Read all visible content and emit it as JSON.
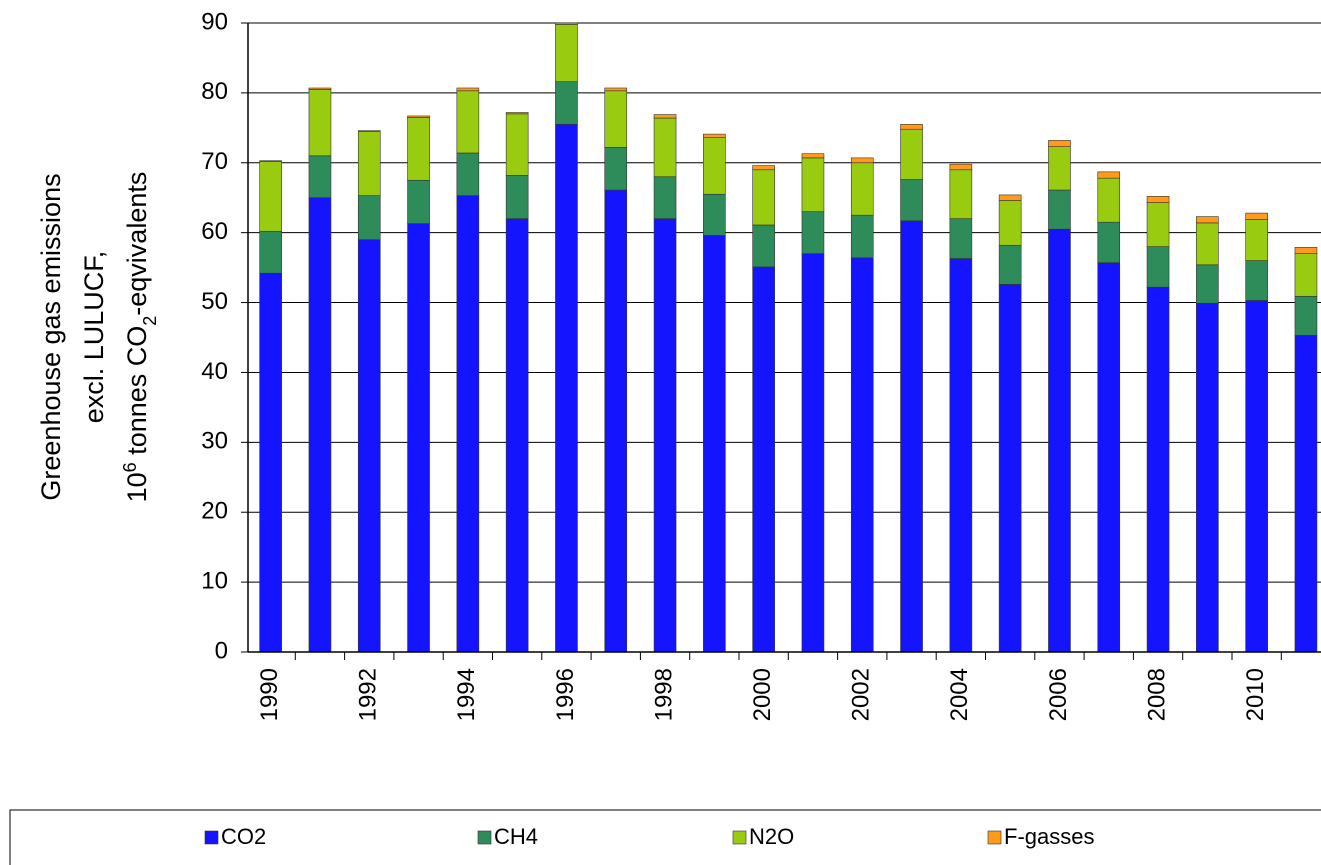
{
  "chart_data": {
    "type": "stacked_bar",
    "y_label": [
      "Greenhouse  gas emissions",
      "excl. LULUCF,",
      [
        "10",
        "6",
        " tonnes  CO",
        "2",
        "-eqvivalents"
      ]
    ],
    "categories": [
      "1990",
      null,
      "1992",
      null,
      "1994",
      null,
      "1996",
      null,
      "1998",
      null,
      "2000",
      null,
      "2002",
      null,
      "2004",
      null,
      "2006",
      null,
      "2008",
      null,
      "2010",
      null
    ],
    "series": [
      {
        "name": "CO2",
        "color": "#1414ff",
        "values": [
          54.2,
          65,
          59,
          61.3,
          65.3,
          62,
          75.5,
          66.1,
          62,
          59.6,
          55.1,
          57,
          56.4,
          61.7,
          56.3,
          52.6,
          60.5,
          55.7,
          52.2,
          49.9,
          50.3,
          45.3
        ]
      },
      {
        "name": "CH4",
        "color": "#2e8b5a",
        "values": [
          6.0,
          6.0,
          6.3,
          6.2,
          6.1,
          6.2,
          6.1,
          6.1,
          6.0,
          5.9,
          6.0,
          6.0,
          6.1,
          5.9,
          5.7,
          5.6,
          5.6,
          5.8,
          5.8,
          5.5,
          5.7,
          5.6
        ]
      },
      {
        "name": "N2O",
        "color": "#99cc11",
        "values": [
          10.0,
          9.5,
          9.2,
          9.0,
          8.9,
          8.8,
          8.2,
          8.1,
          8.4,
          8.1,
          7.9,
          7.7,
          7.5,
          7.2,
          7.0,
          6.4,
          6.2,
          6.3,
          6.3,
          6.0,
          5.9,
          6.1
        ]
      },
      {
        "name": "F-gasses",
        "color": "#ff9a1a",
        "values": [
          0.1,
          0.2,
          0.1,
          0.2,
          0.4,
          0.2,
          0.2,
          0.4,
          0.5,
          0.5,
          0.6,
          0.6,
          0.7,
          0.7,
          0.8,
          0.8,
          0.9,
          0.9,
          0.9,
          0.9,
          0.9,
          0.9
        ]
      }
    ],
    "ylim": [
      0,
      90
    ],
    "yticks": [
      0,
      10,
      20,
      30,
      40,
      50,
      60,
      70,
      80,
      90
    ],
    "grid": true,
    "legend": "bottom"
  }
}
